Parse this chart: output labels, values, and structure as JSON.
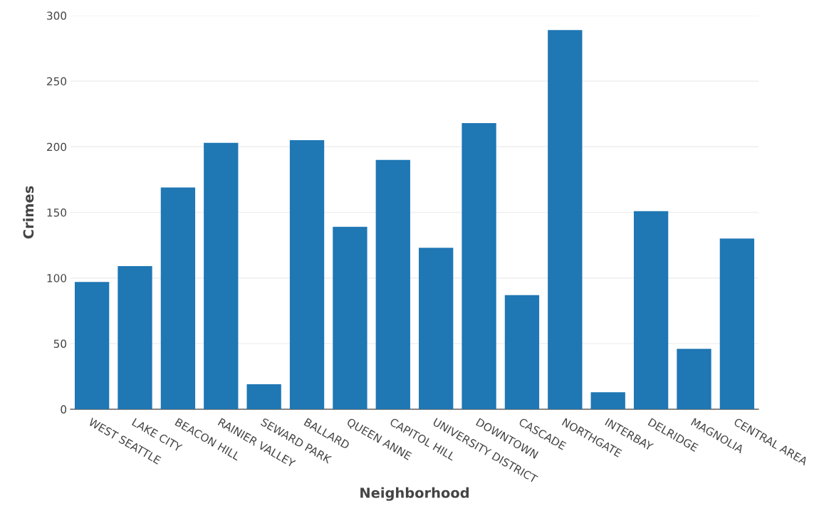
{
  "chart_data": {
    "type": "bar",
    "xlabel": "Neighborhood",
    "ylabel": "Crimes",
    "categories": [
      "WEST SEATTLE",
      "LAKE CITY",
      "BEACON HILL",
      "RAINIER VALLEY",
      "SEWARD PARK",
      "BALLARD",
      "QUEEN ANNE",
      "CAPITOL HILL",
      "UNIVERSITY DISTRICT",
      "DOWNTOWN",
      "CASCADE",
      "NORTHGATE",
      "INTERBAY",
      "DELRIDGE",
      "MAGNOLIA",
      "CENTRAL AREA"
    ],
    "values": [
      97,
      109,
      169,
      203,
      19,
      205,
      139,
      190,
      123,
      218,
      87,
      289,
      13,
      151,
      46,
      130
    ],
    "color": "#1f77b4",
    "ylim": [
      0,
      300
    ],
    "yticks": [
      0,
      50,
      100,
      150,
      200,
      250,
      300
    ],
    "grid": "y",
    "legend": false
  }
}
